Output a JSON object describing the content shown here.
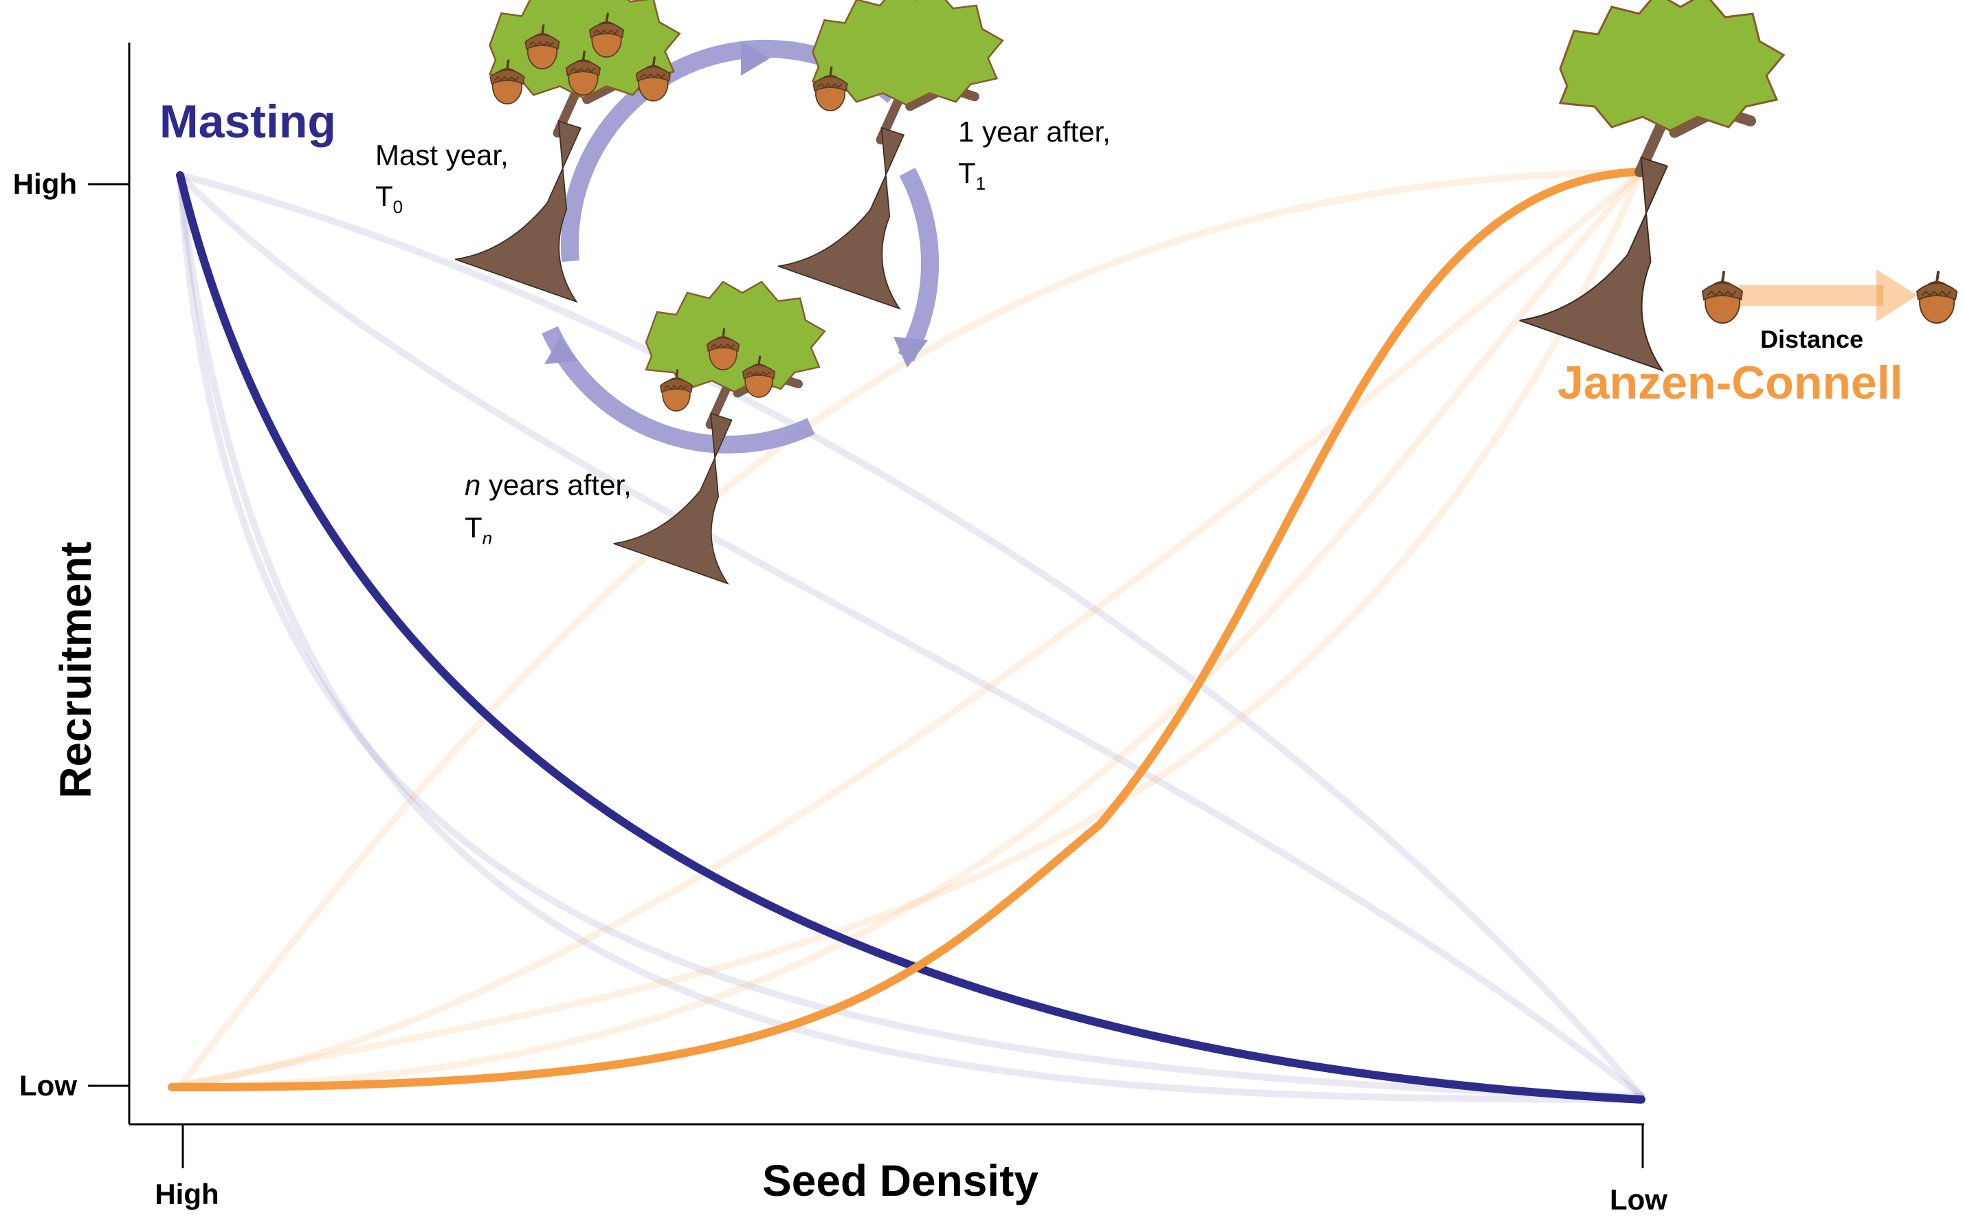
{
  "colors": {
    "masting": "#2e2c8b",
    "janzen_connell": "#f59a3f",
    "cycle": "#9a97cf",
    "trunk": "#7a5a48",
    "foliage": "#8db83a",
    "acorn": "#c7773a",
    "acorn_cap": "#8d5a33",
    "axis": "#000000"
  },
  "axes": {
    "x_title": "Seed Density",
    "y_title": "Recruitment",
    "x_ticks": [
      "High",
      "Low"
    ],
    "y_ticks": [
      "High",
      "Low"
    ]
  },
  "labels": {
    "masting": "Masting",
    "janzen_connell": "Janzen-Connell",
    "distance": "Distance"
  },
  "cycle": {
    "t0": {
      "line1": "Mast year,",
      "base": "T",
      "sub": "0"
    },
    "t1": {
      "line1": "1 year after,",
      "base": "T",
      "sub": "1"
    },
    "tn": {
      "italic": "n",
      "line1_rest": " years after,",
      "base": "T",
      "sub": "n"
    }
  },
  "icons": [
    "tree-icon",
    "acorn-icon",
    "cycle-arrow-icon",
    "distance-arrow-icon"
  ]
}
